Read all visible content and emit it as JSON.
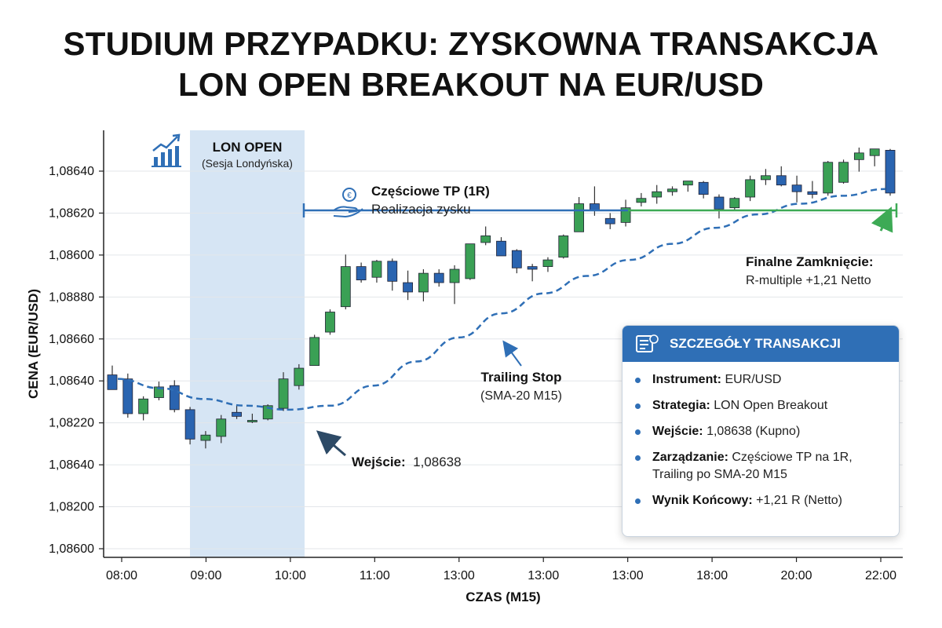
{
  "title_line1": "STUDIUM PRZYPADKU: ZYSKOWNA TRANSAKCJA",
  "title_line2": "LON OPEN BREAKOUT NA EUR/USD",
  "colors": {
    "bull": "#3aa055",
    "bear": "#2a64b0",
    "session": "#cfe1f2",
    "tp_line": "#2f6fb6",
    "final_line": "#3daa55",
    "trailing": "#2f6fb6",
    "panel_head": "#2f6fb6"
  },
  "chart_data": {
    "type": "candlestick",
    "xlabel": "CZAS (M15)",
    "ylabel": "CENA (EUR/USD)",
    "x_tick_labels": [
      "08:00",
      "09:00",
      "10:00",
      "11:00",
      "13:00",
      "13:00",
      "13:00",
      "18:00",
      "20:00",
      "22:00"
    ],
    "y_tick_labels": [
      "1,08640",
      "1,08620",
      "1,08600",
      "1,08880",
      "1,08660",
      "1,08640",
      "1,08220",
      "1,08640",
      "1,08200",
      "1,08600"
    ],
    "grid": true,
    "candles": [
      {
        "o": 6.5,
        "h": 6.85,
        "l": 5.95,
        "c": 5.95
      },
      {
        "o": 6.35,
        "h": 6.55,
        "l": 4.9,
        "c": 5.05
      },
      {
        "o": 5.05,
        "h": 5.7,
        "l": 4.8,
        "c": 5.6
      },
      {
        "o": 5.65,
        "h": 6.25,
        "l": 5.55,
        "c": 6.05
      },
      {
        "o": 6.1,
        "h": 6.3,
        "l": 5.1,
        "c": 5.2
      },
      {
        "o": 5.2,
        "h": 5.3,
        "l": 3.9,
        "c": 4.1
      },
      {
        "o": 4.05,
        "h": 4.4,
        "l": 3.75,
        "c": 4.25
      },
      {
        "o": 4.2,
        "h": 5.0,
        "l": 3.95,
        "c": 4.85
      },
      {
        "o": 5.1,
        "h": 5.35,
        "l": 4.85,
        "c": 4.95
      },
      {
        "o": 4.8,
        "h": 5.05,
        "l": 4.7,
        "c": 4.8
      },
      {
        "o": 4.85,
        "h": 5.4,
        "l": 4.8,
        "c": 5.35
      },
      {
        "o": 5.25,
        "h": 6.6,
        "l": 5.15,
        "c": 6.35
      },
      {
        "o": 6.1,
        "h": 6.9,
        "l": 5.95,
        "c": 6.75
      },
      {
        "o": 6.85,
        "h": 8.0,
        "l": 6.85,
        "c": 7.9
      },
      {
        "o": 8.1,
        "h": 8.95,
        "l": 8.0,
        "c": 8.85
      },
      {
        "o": 9.05,
        "h": 11.0,
        "l": 8.95,
        "c": 10.55
      },
      {
        "o": 10.55,
        "h": 10.7,
        "l": 9.95,
        "c": 10.05
      },
      {
        "o": 10.15,
        "h": 10.8,
        "l": 9.95,
        "c": 10.75
      },
      {
        "o": 10.75,
        "h": 10.85,
        "l": 9.65,
        "c": 10.0
      },
      {
        "o": 9.95,
        "h": 10.4,
        "l": 9.3,
        "c": 9.6
      },
      {
        "o": 9.6,
        "h": 10.45,
        "l": 9.25,
        "c": 10.3
      },
      {
        "o": 10.3,
        "h": 10.45,
        "l": 9.8,
        "c": 9.95
      },
      {
        "o": 9.95,
        "h": 10.6,
        "l": 9.15,
        "c": 10.45
      },
      {
        "o": 10.1,
        "h": 11.35,
        "l": 10.05,
        "c": 11.4
      },
      {
        "o": 11.45,
        "h": 12.05,
        "l": 11.35,
        "c": 11.7
      },
      {
        "o": 11.5,
        "h": 11.65,
        "l": 10.95,
        "c": 10.95
      },
      {
        "o": 11.15,
        "h": 11.2,
        "l": 10.3,
        "c": 10.5
      },
      {
        "o": 10.55,
        "h": 10.65,
        "l": 10.0,
        "c": 10.45
      },
      {
        "o": 10.55,
        "h": 10.9,
        "l": 10.35,
        "c": 10.8
      },
      {
        "o": 10.9,
        "h": 11.75,
        "l": 10.85,
        "c": 11.7
      },
      {
        "o": 11.85,
        "h": 13.15,
        "l": 11.85,
        "c": 12.9
      },
      {
        "o": 12.9,
        "h": 13.55,
        "l": 12.45,
        "c": 12.65
      },
      {
        "o": 12.35,
        "h": 12.55,
        "l": 11.95,
        "c": 12.15
      },
      {
        "o": 12.2,
        "h": 13.05,
        "l": 12.05,
        "c": 12.75
      },
      {
        "o": 12.95,
        "h": 13.3,
        "l": 12.8,
        "c": 13.1
      },
      {
        "o": 13.15,
        "h": 13.6,
        "l": 12.9,
        "c": 13.35
      },
      {
        "o": 13.35,
        "h": 13.55,
        "l": 13.2,
        "c": 13.45
      },
      {
        "o": 13.6,
        "h": 13.75,
        "l": 13.35,
        "c": 13.75
      },
      {
        "o": 13.7,
        "h": 13.75,
        "l": 13.1,
        "c": 13.25
      },
      {
        "o": 13.15,
        "h": 13.25,
        "l": 12.35,
        "c": 12.7
      },
      {
        "o": 12.75,
        "h": 13.15,
        "l": 12.65,
        "c": 13.1
      },
      {
        "o": 13.15,
        "h": 13.95,
        "l": 13.0,
        "c": 13.8
      },
      {
        "o": 13.8,
        "h": 14.2,
        "l": 13.6,
        "c": 13.95
      },
      {
        "o": 13.95,
        "h": 14.3,
        "l": 13.55,
        "c": 13.6
      },
      {
        "o": 13.6,
        "h": 13.95,
        "l": 12.95,
        "c": 13.35
      },
      {
        "o": 13.35,
        "h": 13.75,
        "l": 13.1,
        "c": 13.25
      },
      {
        "o": 13.3,
        "h": 14.5,
        "l": 13.2,
        "c": 14.45
      },
      {
        "o": 13.7,
        "h": 14.55,
        "l": 13.65,
        "c": 14.45
      },
      {
        "o": 14.55,
        "h": 15.0,
        "l": 14.1,
        "c": 14.8
      },
      {
        "o": 14.7,
        "h": 14.95,
        "l": 14.3,
        "c": 14.95
      },
      {
        "o": 14.9,
        "h": 14.95,
        "l": 13.2,
        "c": 13.3
      }
    ],
    "trailing_stop": [
      6.35,
      6.0,
      5.6,
      5.35,
      5.2,
      5.35,
      6.1,
      7.0,
      7.9,
      8.8,
      9.55,
      10.2,
      10.8,
      11.4,
      12.0,
      12.5,
      12.9,
      13.2,
      13.45
    ],
    "partial_tp_level": 12.65,
    "final_close_level": 12.65,
    "annotations": {
      "session_title": "LON OPEN",
      "session_sub": "(Sesja Londyńska)",
      "tp_title": "Częściowe TP (1R)",
      "tp_sub": "Realizacja zysku",
      "final_title": "Finalne Zamknięcie:",
      "final_sub": "R-multiple +1,21 Netto",
      "trailing_title": "Trailing Stop",
      "trailing_sub": "(SMA-20 M15)",
      "entry_label": "Wejście:",
      "entry_value": "1,08638"
    }
  },
  "panel": {
    "title": "SZCZEGÓŁY TRANSAKCJI",
    "items": [
      {
        "key": "Instrument:",
        "value": "EUR/USD"
      },
      {
        "key": "Strategia:",
        "value": "LON Open Breakout"
      },
      {
        "key": "Wejście:",
        "value": "1,08638 (Kupno)"
      },
      {
        "key": "Zarządzanie:",
        "value": "Częściowe TP na 1R, Trailing po SMA-20 M15"
      },
      {
        "key": "Wynik Końcowy:",
        "value": "+1,21 R (Netto)"
      }
    ]
  }
}
